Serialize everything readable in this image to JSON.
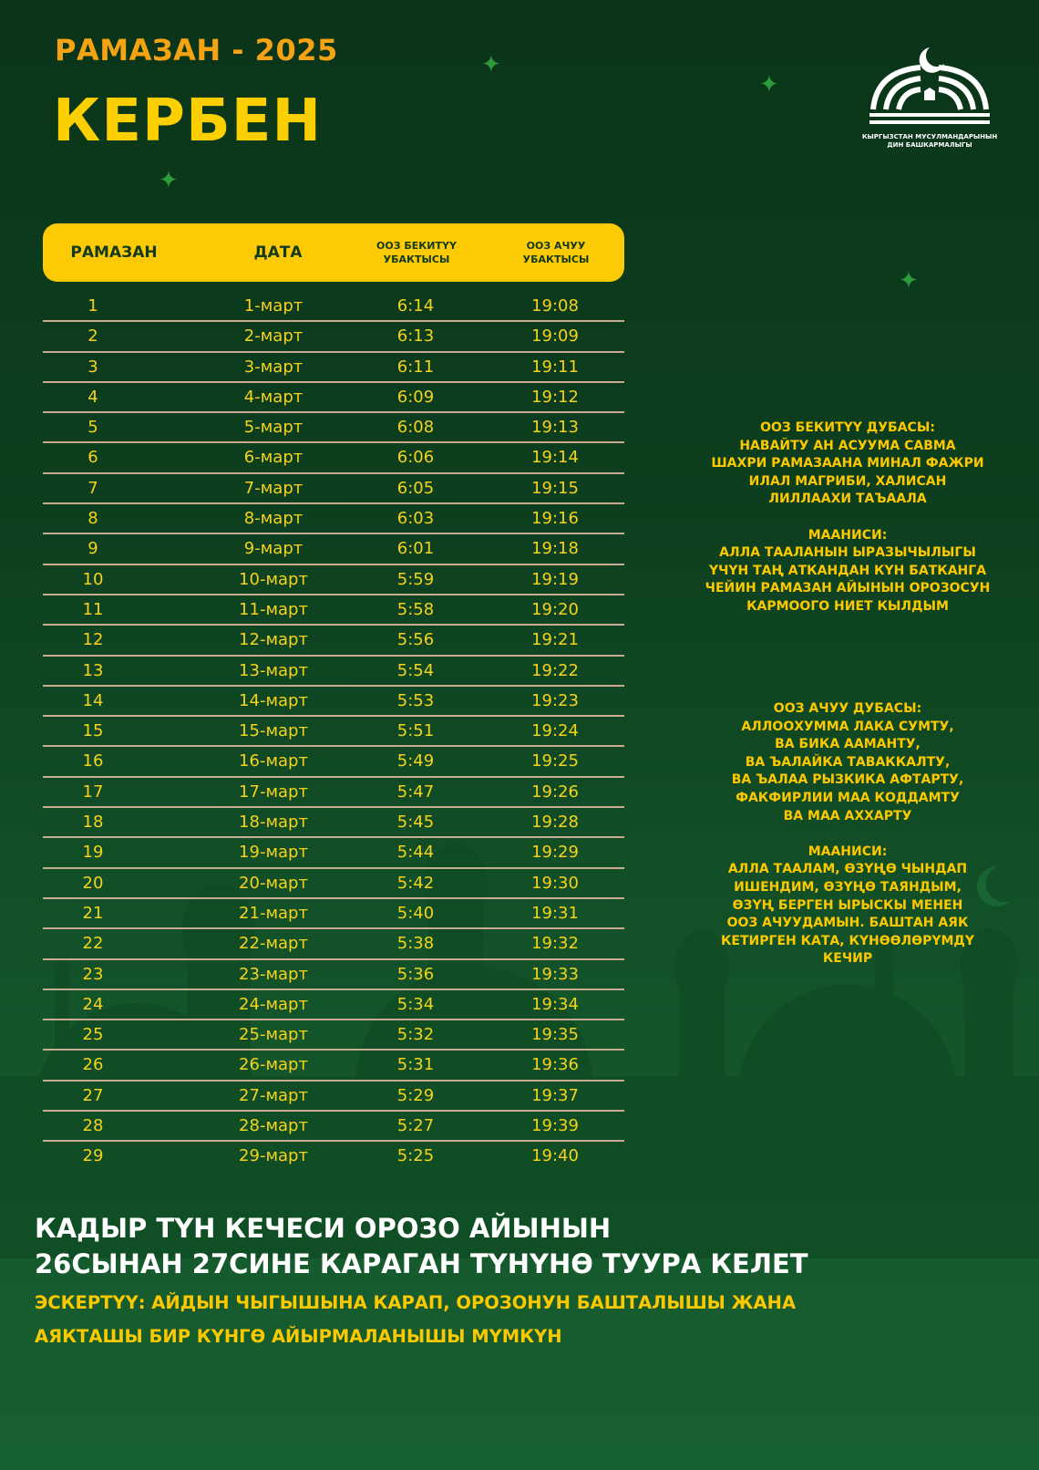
{
  "header": {
    "subtitle": "РАМАЗАН - 2025",
    "title": "КЕРБЕН"
  },
  "logo": {
    "caption_line1": "КЫРГЫЗСТАН МУСУЛМАНДАРЫНЫН",
    "caption_line2": "ДИН БАШКАРМАЛЫГЫ"
  },
  "colors": {
    "background": "#0d3f1f",
    "accent_yellow": "#fdcb05",
    "subtitle_orange": "#f6a313",
    "row_divider": "#c9ab92"
  },
  "table": {
    "headers": [
      {
        "line1": "РАМАЗАН",
        "line2": ""
      },
      {
        "line1": "ДАТА",
        "line2": ""
      },
      {
        "line1": "ООЗ БЕКИТҮҮ",
        "line2": "УБАКТЫСЫ"
      },
      {
        "line1": "ООЗ АЧУУ",
        "line2": "УБАКТЫСЫ"
      }
    ],
    "rows": [
      [
        "1",
        "1-март",
        "6:14",
        "19:08"
      ],
      [
        "2",
        "2-март",
        "6:13",
        "19:09"
      ],
      [
        "3",
        "3-март",
        "6:11",
        "19:11"
      ],
      [
        "4",
        "4-март",
        "6:09",
        "19:12"
      ],
      [
        "5",
        "5-март",
        "6:08",
        "19:13"
      ],
      [
        "6",
        "6-март",
        "6:06",
        "19:14"
      ],
      [
        "7",
        "7-март",
        "6:05",
        "19:15"
      ],
      [
        "8",
        "8-март",
        "6:03",
        "19:16"
      ],
      [
        "9",
        "9-март",
        "6:01",
        "19:18"
      ],
      [
        "10",
        "10-март",
        "5:59",
        "19:19"
      ],
      [
        "11",
        "11-март",
        "5:58",
        "19:20"
      ],
      [
        "12",
        "12-март",
        "5:56",
        "19:21"
      ],
      [
        "13",
        "13-март",
        "5:54",
        "19:22"
      ],
      [
        "14",
        "14-март",
        "5:53",
        "19:23"
      ],
      [
        "15",
        "15-март",
        "5:51",
        "19:24"
      ],
      [
        "16",
        "16-март",
        "5:49",
        "19:25"
      ],
      [
        "17",
        "17-март",
        "5:47",
        "19:26"
      ],
      [
        "18",
        "18-март",
        "5:45",
        "19:28"
      ],
      [
        "19",
        "19-март",
        "5:44",
        "19:29"
      ],
      [
        "20",
        "20-март",
        "5:42",
        "19:30"
      ],
      [
        "21",
        "21-март",
        "5:40",
        "19:31"
      ],
      [
        "22",
        "22-март",
        "5:38",
        "19:32"
      ],
      [
        "23",
        "23-март",
        "5:36",
        "19:33"
      ],
      [
        "24",
        "24-март",
        "5:34",
        "19:34"
      ],
      [
        "25",
        "25-март",
        "5:32",
        "19:35"
      ],
      [
        "26",
        "26-март",
        "5:31",
        "19:36"
      ],
      [
        "27",
        "27-март",
        "5:29",
        "19:37"
      ],
      [
        "28",
        "28-март",
        "5:27",
        "19:39"
      ],
      [
        "29",
        "29-март",
        "5:25",
        "19:40"
      ]
    ]
  },
  "dua_suhoor": {
    "lines": [
      "ООЗ БЕКИТҮҮ ДУБАСЫ:",
      "НАВАЙТУ АН АСУУМА САВМА",
      "ШАХРИ РАМАЗААНА МИНАЛ ФАЖРИ",
      "ИЛАЛ МАГРИБИ, ХАЛИСАН",
      "ЛИЛЛААХИ ТАЪААЛА"
    ],
    "meaning": [
      "МААНИСИ:",
      "АЛЛА ТААЛАНЫН ЫРАЗЫЧЫЛЫГЫ",
      "ҮЧҮН ТАҢ АТКАНДАН КҮН БАТКАНГА",
      "ЧЕЙИН РАМАЗАН АЙЫНЫН ОРОЗОСУН",
      "КАРМООГО НИЕТ КЫЛДЫМ"
    ]
  },
  "dua_iftar": {
    "lines": [
      "ООЗ АЧУУ ДУБАСЫ:",
      "АЛЛООХУММА ЛАКА СУМТУ,",
      "ВА БИКА ААМАНТУ,",
      "ВА ЪАЛАЙКА ТАВАККАЛТУ,",
      "ВА ЪАЛАА РЫЗКИКА АФТАРТУ,",
      "ФАКФИРЛИИ МАА КОДДАМТУ",
      "ВА МАА АХХАРТУ"
    ],
    "meaning": [
      "МААНИСИ:",
      "АЛЛА ТААЛАМ, ӨЗҮҢӨ ЧЫНДАП",
      "ИШЕНДИМ, ӨЗҮҢӨ ТАЯНДЫМ,",
      "ӨЗҮҢ БЕРГЕН ЫРЫСКЫ МЕНЕН",
      "ООЗ АЧУУДАМЫН. БАШТАН АЯК",
      "КЕТИРГЕН КАТА, КҮНӨӨЛӨРҮМДҮ",
      "КЕЧИР"
    ]
  },
  "footer": {
    "line1": "КАДЫР ТҮН КЕЧЕСИ ОРОЗО АЙЫНЫН",
    "line2": "26СЫНАН 27СИНЕ КАРАГАН ТҮНҮНӨ ТУУРА КЕЛЕТ",
    "note1": "ЭСКЕРТҮҮ: АЙДЫН ЧЫГЫШЫНА КАРАП, ОРОЗОНУН БАШТАЛЫШЫ ЖАНА",
    "note2": "АЯКТАШЫ БИР КҮНГӨ АЙЫРМАЛАНЫШЫ МҮМКҮН"
  }
}
